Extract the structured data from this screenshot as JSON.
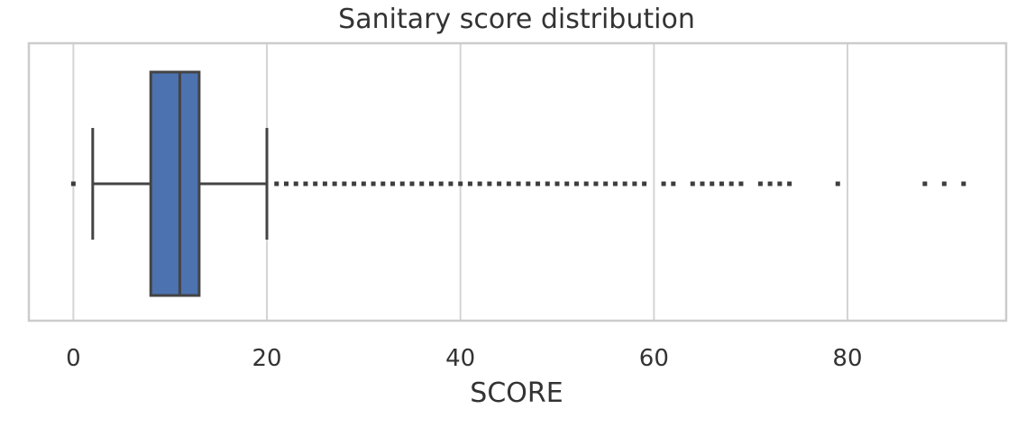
{
  "chart_data": {
    "type": "boxplot",
    "title": "Sanitary score distribution",
    "xlabel": "SCORE",
    "ylabel": "",
    "orientation": "horizontal",
    "xlim": [
      -4.6,
      96.4
    ],
    "xticks": [
      0,
      20,
      40,
      60,
      80
    ],
    "grid": "vertical",
    "box": {
      "color": "#4c72b0",
      "whisker_low": 2,
      "q1": 8,
      "median": 11,
      "q3": 13,
      "whisker_high": 20
    },
    "outliers": [
      0,
      21,
      22,
      23,
      24,
      25,
      26,
      27,
      28,
      29,
      30,
      31,
      32,
      33,
      34,
      35,
      36,
      37,
      38,
      39,
      40,
      41,
      42,
      43,
      44,
      45,
      46,
      47,
      48,
      49,
      50,
      51,
      52,
      53,
      54,
      55,
      56,
      57,
      58,
      59,
      61,
      62,
      64,
      65,
      66,
      67,
      68,
      69,
      71,
      72,
      73,
      74,
      79,
      88,
      90,
      92
    ]
  }
}
